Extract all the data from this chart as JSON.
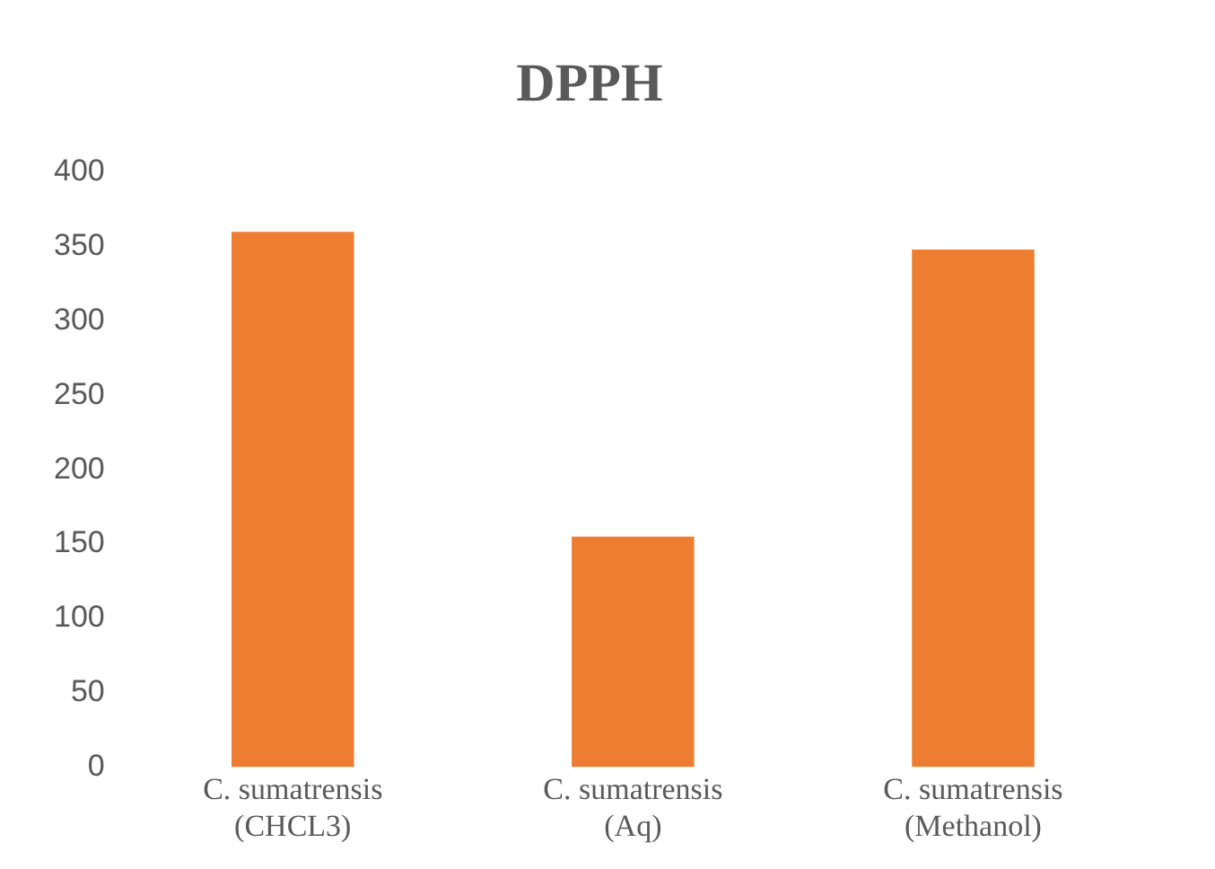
{
  "chart_data": {
    "type": "bar",
    "title": "DPPH",
    "categories": [
      "C. sumatrensis (CHCL3)",
      "C. sumatrensis (Aq)",
      "C. sumatrensis (Methanol)"
    ],
    "values": [
      360,
      155,
      348
    ],
    "color": "#ed7d31",
    "ylim": [
      0,
      400
    ],
    "yticks": [
      0,
      50,
      100,
      150,
      200,
      250,
      300,
      350,
      400
    ],
    "grid": false,
    "legend": false
  }
}
